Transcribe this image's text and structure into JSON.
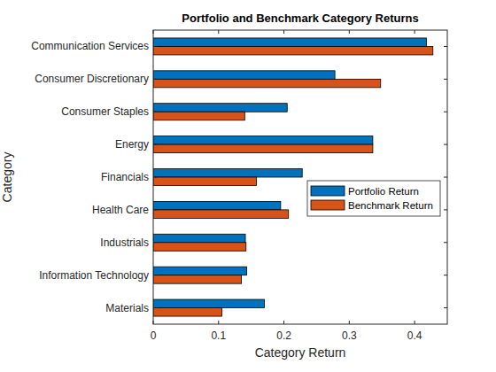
{
  "chart_data": {
    "type": "bar",
    "orientation": "horizontal",
    "title": "Portfolio and Benchmark Category Returns",
    "x_label": "Category Return",
    "y_label": "Category",
    "categories": [
      "Communication Services",
      "Consumer Discretionary",
      "Consumer Staples",
      "Energy",
      "Financials",
      "Health Care",
      "Industrials",
      "Information Technology",
      "Materials"
    ],
    "series": [
      {
        "name": "Portfolio Return",
        "color": "#0072bd",
        "values": [
          0.418,
          0.278,
          0.205,
          0.336,
          0.228,
          0.195,
          0.141,
          0.143,
          0.17
        ]
      },
      {
        "name": "Benchmark Return",
        "color": "#d95319",
        "values": [
          0.428,
          0.348,
          0.14,
          0.336,
          0.158,
          0.207,
          0.142,
          0.135,
          0.105
        ]
      }
    ],
    "xlim": [
      0,
      0.45
    ],
    "xticks": [
      0,
      0.1,
      0.2,
      0.3,
      0.4
    ],
    "grid": false,
    "legend": "east"
  }
}
